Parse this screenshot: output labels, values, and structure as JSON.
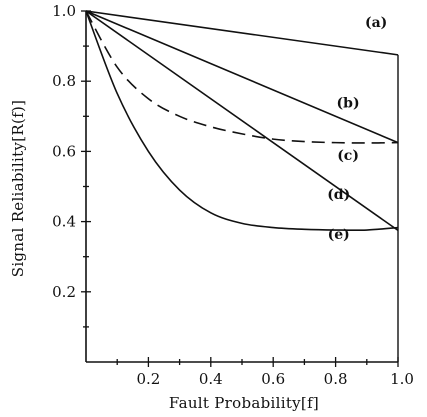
{
  "chart_data": {
    "type": "line",
    "xlabel": "Fault Probability[f]",
    "ylabel": "Signal Reliability[R(f)]",
    "xlim": [
      0,
      1.0
    ],
    "ylim": [
      0,
      1.0
    ],
    "xticks": [
      "0.2",
      "0.4",
      "0.6",
      "0.8",
      "1.0"
    ],
    "xtick_values": [
      0.2,
      0.4,
      0.6,
      0.8,
      1.0
    ],
    "yticks": [
      "0.2",
      "0.4",
      "0.6",
      "0.8",
      "1.0"
    ],
    "ytick_values": [
      0.2,
      0.4,
      0.6,
      0.8,
      1.0
    ],
    "grid": false,
    "series": [
      {
        "name": "(a)",
        "style": "solid",
        "x": [
          0,
          0.2,
          0.4,
          0.6,
          0.8,
          1.0
        ],
        "y": [
          1.0,
          0.975,
          0.95,
          0.925,
          0.9,
          0.875
        ]
      },
      {
        "name": "(b)",
        "style": "solid",
        "x": [
          0,
          0.2,
          0.4,
          0.6,
          0.8,
          1.0
        ],
        "y": [
          1.0,
          0.91,
          0.83,
          0.75,
          0.69,
          0.625
        ]
      },
      {
        "name": "(c)",
        "style": "dashed",
        "x": [
          0,
          0.1,
          0.2,
          0.3,
          0.4,
          0.5,
          0.6,
          0.7,
          0.8,
          0.9,
          1.0
        ],
        "y": [
          1.0,
          0.84,
          0.75,
          0.7,
          0.67,
          0.65,
          0.635,
          0.628,
          0.625,
          0.624,
          0.625
        ]
      },
      {
        "name": "(d)",
        "style": "solid",
        "x": [
          0,
          0.2,
          0.4,
          0.6,
          0.8,
          1.0
        ],
        "y": [
          1.0,
          0.875,
          0.75,
          0.625,
          0.5,
          0.375
        ]
      },
      {
        "name": "(e)",
        "style": "solid",
        "x": [
          0,
          0.1,
          0.2,
          0.3,
          0.4,
          0.5,
          0.6,
          0.7,
          0.8,
          0.9,
          1.0
        ],
        "y": [
          1.0,
          0.765,
          0.6,
          0.49,
          0.425,
          0.395,
          0.383,
          0.378,
          0.376,
          0.376,
          0.383
        ]
      }
    ]
  }
}
